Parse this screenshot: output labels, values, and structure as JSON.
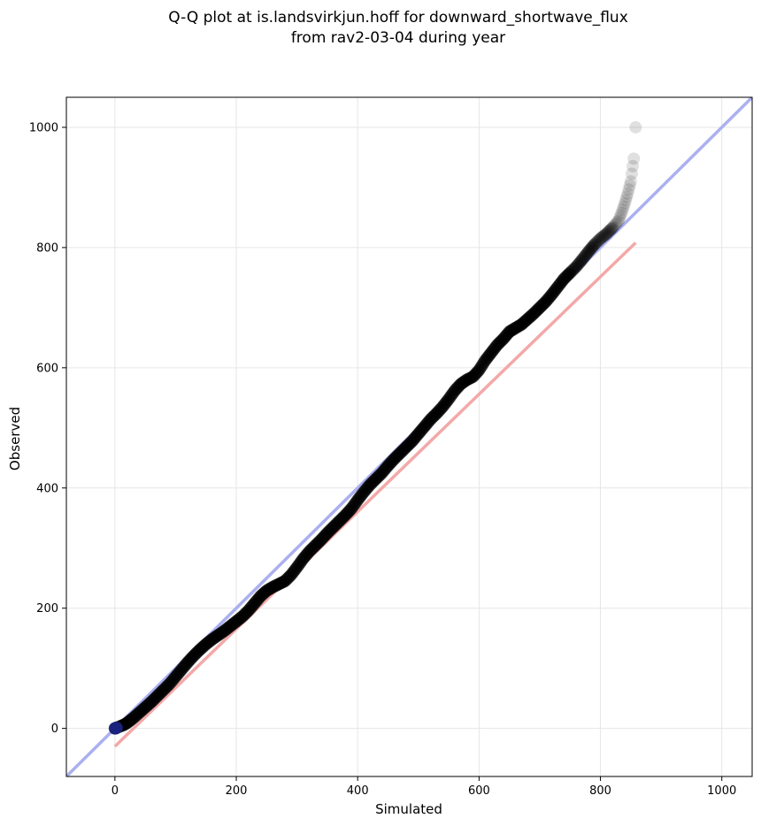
{
  "chart_data": {
    "type": "scatter",
    "title": [
      "Q-Q plot at is.landsvirkjun.hoff for downward_shortwave_flux",
      "from rav2-03-04 during year"
    ],
    "xlabel": "Simulated",
    "ylabel": "Observed",
    "xlim": [
      -80,
      1050
    ],
    "ylim": [
      -80,
      1050
    ],
    "xticks": [
      0,
      200,
      400,
      600,
      800,
      1000
    ],
    "yticks": [
      0,
      200,
      400,
      600,
      800,
      1000
    ],
    "grid": true,
    "colors": {
      "points": "#000000",
      "identity_line": "#aab0f0",
      "fit_line": "#f4a8a8",
      "low_density_segment": "#1a237e",
      "mid_segment": "#8b0000"
    },
    "series": [
      {
        "kind": "points",
        "x": [
          0,
          1,
          2,
          3,
          5,
          8,
          10,
          15,
          20,
          25,
          30,
          40,
          50,
          60,
          70,
          80,
          90,
          100,
          110,
          120,
          130,
          140,
          150,
          160,
          170,
          180,
          190,
          200,
          210,
          220,
          230,
          240,
          250,
          260,
          270,
          280,
          290,
          300,
          310,
          320,
          330,
          340,
          350,
          360,
          370,
          380,
          390,
          400,
          410,
          420,
          430,
          440,
          450,
          460,
          470,
          480,
          490,
          500,
          510,
          520,
          530,
          540,
          550,
          560,
          570,
          580,
          590,
          600,
          610,
          620,
          630,
          640,
          650,
          660,
          670,
          680,
          690,
          700,
          710,
          720,
          730,
          740,
          750,
          760,
          770,
          780,
          790,
          800,
          810,
          820,
          830,
          835,
          840,
          845,
          850,
          855,
          858
        ],
        "y": [
          0,
          0,
          1,
          1,
          2,
          3,
          4,
          6,
          9,
          13,
          17,
          26,
          35,
          44,
          54,
          64,
          74,
          86,
          98,
          110,
          121,
          131,
          140,
          148,
          155,
          162,
          170,
          178,
          186,
          196,
          208,
          220,
          229,
          235,
          240,
          245,
          255,
          268,
          282,
          294,
          304,
          314,
          325,
          335,
          345,
          355,
          366,
          380,
          393,
          405,
          415,
          425,
          437,
          448,
          458,
          468,
          478,
          490,
          502,
          514,
          524,
          535,
          548,
          562,
          573,
          580,
          585,
          596,
          612,
          625,
          638,
          648,
          660,
          666,
          672,
          681,
          690,
          700,
          710,
          722,
          735,
          748,
          758,
          768,
          780,
          793,
          805,
          815,
          823,
          833,
          845,
          858,
          873,
          890,
          910,
          948,
          1000
        ]
      }
    ],
    "lines": [
      {
        "name": "",
        "kind": "identity",
        "x": [
          -80,
          1050
        ],
        "y": [
          -80,
          1050
        ]
      },
      {
        "name": "",
        "kind": "fit",
        "x": [
          0,
          858
        ],
        "y": [
          -30,
          808
        ]
      }
    ]
  }
}
